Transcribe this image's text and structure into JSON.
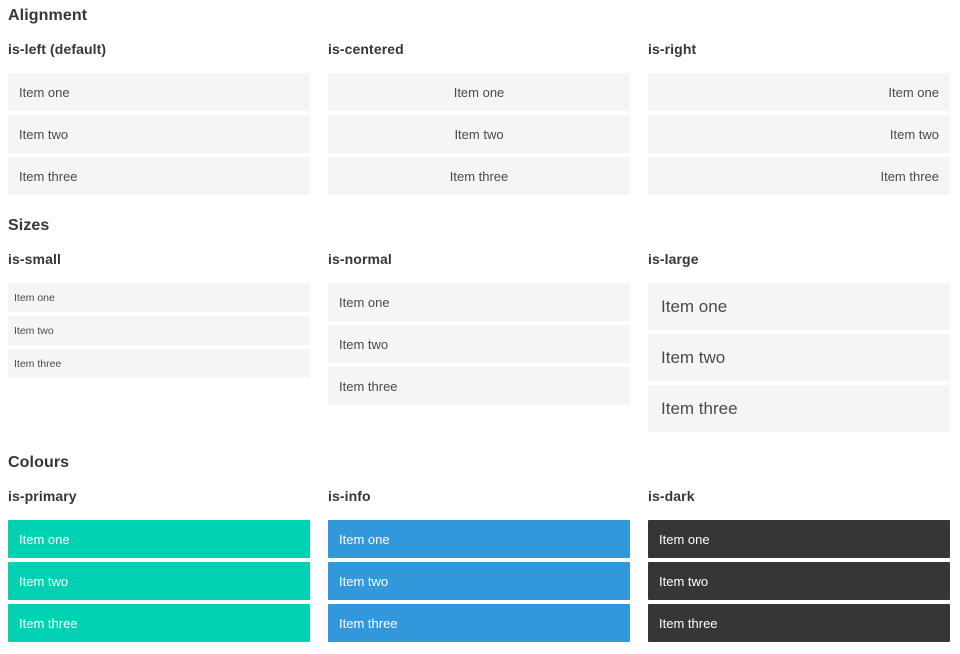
{
  "sections": [
    {
      "title": "Alignment",
      "columns": [
        {
          "heading": "is-left (default)",
          "modifier": "is-left",
          "items": [
            "Item one",
            "Item two",
            "Item three"
          ]
        },
        {
          "heading": "is-centered",
          "modifier": "is-centered",
          "items": [
            "Item one",
            "Item two",
            "Item three"
          ]
        },
        {
          "heading": "is-right",
          "modifier": "is-right",
          "items": [
            "Item one",
            "Item two",
            "Item three"
          ]
        }
      ]
    },
    {
      "title": "Sizes",
      "columns": [
        {
          "heading": "is-small",
          "modifier": "is-small",
          "items": [
            "Item one",
            "Item two",
            "Item three"
          ]
        },
        {
          "heading": "is-normal",
          "modifier": "is-normal",
          "items": [
            "Item one",
            "Item two",
            "Item three"
          ]
        },
        {
          "heading": "is-large",
          "modifier": "is-large",
          "items": [
            "Item one",
            "Item two",
            "Item three"
          ]
        }
      ]
    },
    {
      "title": "Colours",
      "columns": [
        {
          "heading": "is-primary",
          "modifier": "is-primary",
          "items": [
            "Item one",
            "Item two",
            "Item three"
          ]
        },
        {
          "heading": "is-info",
          "modifier": "is-info",
          "items": [
            "Item one",
            "Item two",
            "Item three"
          ]
        },
        {
          "heading": "is-dark",
          "modifier": "is-dark",
          "items": [
            "Item one",
            "Item two",
            "Item three"
          ]
        }
      ]
    }
  ],
  "colors": {
    "item_background": "#f5f5f5",
    "item_text": "#4a4a4a",
    "heading_text": "#363636",
    "primary": "#00d1b2",
    "info": "#3298dc",
    "dark": "#363636",
    "colored_item_text": "#ffffff"
  }
}
